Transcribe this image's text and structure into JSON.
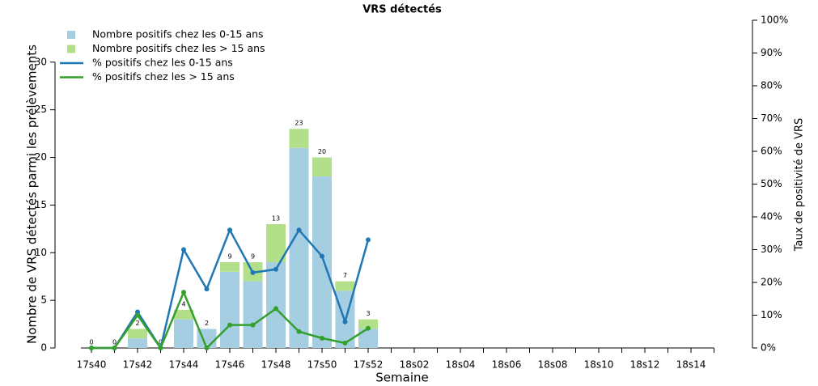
{
  "chart_data": {
    "type": "bar",
    "title": "VRS détectés",
    "x_label": "Semaine",
    "y_label": "Nombre de VRS détectés parmi les prélèvements",
    "y2_label": "Taux de positivité de VRS",
    "categories": [
      "17s40",
      null,
      "17s42",
      null,
      "17s44",
      null,
      "17s46",
      null,
      "17s48",
      null,
      "17s50",
      null,
      "17s52",
      null,
      "18s02",
      null,
      "18s04",
      null,
      "18s06",
      null,
      "18s08",
      null,
      "18s10",
      null,
      "18s12",
      null,
      "18s14",
      null
    ],
    "series": [
      {
        "name": "Nombre positifs chez les 0-15 ans",
        "type": "bar",
        "color": "#a6cee3",
        "values": [
          0,
          0,
          1,
          0,
          3,
          2,
          8,
          7,
          9,
          21,
          18,
          6,
          2,
          null,
          null,
          null,
          null,
          null,
          null,
          null,
          null,
          null,
          null,
          null,
          null,
          null,
          null,
          null
        ]
      },
      {
        "name": "Nombre positifs chez les > 15 ans",
        "type": "bar",
        "color": "#b2df8a",
        "values": [
          0,
          0,
          1,
          0,
          1,
          0,
          1,
          2,
          4,
          2,
          2,
          1,
          1,
          null,
          null,
          null,
          null,
          null,
          null,
          null,
          null,
          null,
          null,
          null,
          null,
          null,
          null,
          null
        ]
      },
      {
        "name": "% positifs chez les 0-15 ans",
        "type": "line",
        "axis": "y2",
        "color": "#1f78b4",
        "values": [
          0,
          0,
          11,
          0,
          30,
          18,
          36,
          23,
          24,
          36,
          28,
          8,
          33,
          null,
          null,
          null,
          null,
          null,
          null,
          null,
          null,
          null,
          null,
          null,
          null,
          null,
          null,
          null
        ]
      },
      {
        "name": "% positifs chez les > 15 ans",
        "type": "line",
        "axis": "y2",
        "color": "#33a02c",
        "values": [
          0,
          0,
          10,
          0,
          17,
          0,
          7,
          7,
          12,
          5,
          3,
          1.5,
          6,
          null,
          null,
          null,
          null,
          null,
          null,
          null,
          null,
          null,
          null,
          null,
          null,
          null,
          null,
          null
        ]
      }
    ],
    "totals": [
      0,
      0,
      2,
      0,
      4,
      2,
      9,
      9,
      13,
      23,
      20,
      7,
      3,
      null,
      null,
      null,
      null,
      null,
      null,
      null,
      null,
      null,
      null,
      null,
      null,
      null,
      null,
      null
    ],
    "ylim": [
      0,
      34.4
    ],
    "yticks": [
      0,
      5,
      10,
      15,
      20,
      25,
      30
    ],
    "y2lim": [
      0,
      100
    ],
    "y2ticks": [
      {
        "value": 0,
        "label": "0%"
      },
      {
        "value": 10,
        "label": "10%"
      },
      {
        "value": 20,
        "label": "20%"
      },
      {
        "value": 30,
        "label": "30%"
      },
      {
        "value": 40,
        "label": "40%"
      },
      {
        "value": 50,
        "label": "50%"
      },
      {
        "value": 60,
        "label": "60%"
      },
      {
        "value": 70,
        "label": "70%"
      },
      {
        "value": 80,
        "label": "80%"
      },
      {
        "value": 90,
        "label": "90%"
      },
      {
        "value": 100,
        "label": "100%"
      }
    ]
  }
}
